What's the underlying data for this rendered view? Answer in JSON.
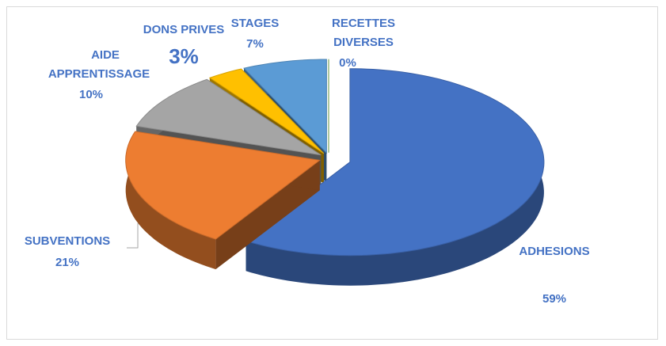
{
  "chart_data": {
    "type": "pie3d",
    "categories": [
      "ADHESIONS",
      "SUBVENTIONS",
      "AIDE APPRENTISSAGE",
      "DONS PRIVES",
      "STAGES",
      "RECETTES DIVERSES"
    ],
    "values": [
      59,
      21,
      10,
      3,
      7,
      0
    ],
    "value_labels": [
      "59%",
      "21%",
      "10%",
      "3%",
      "7%",
      "0%"
    ],
    "colors": [
      "#4472c4",
      "#ed7d31",
      "#a5a5a5",
      "#ffc000",
      "#5b9bd5",
      "#70ad47"
    ]
  }
}
